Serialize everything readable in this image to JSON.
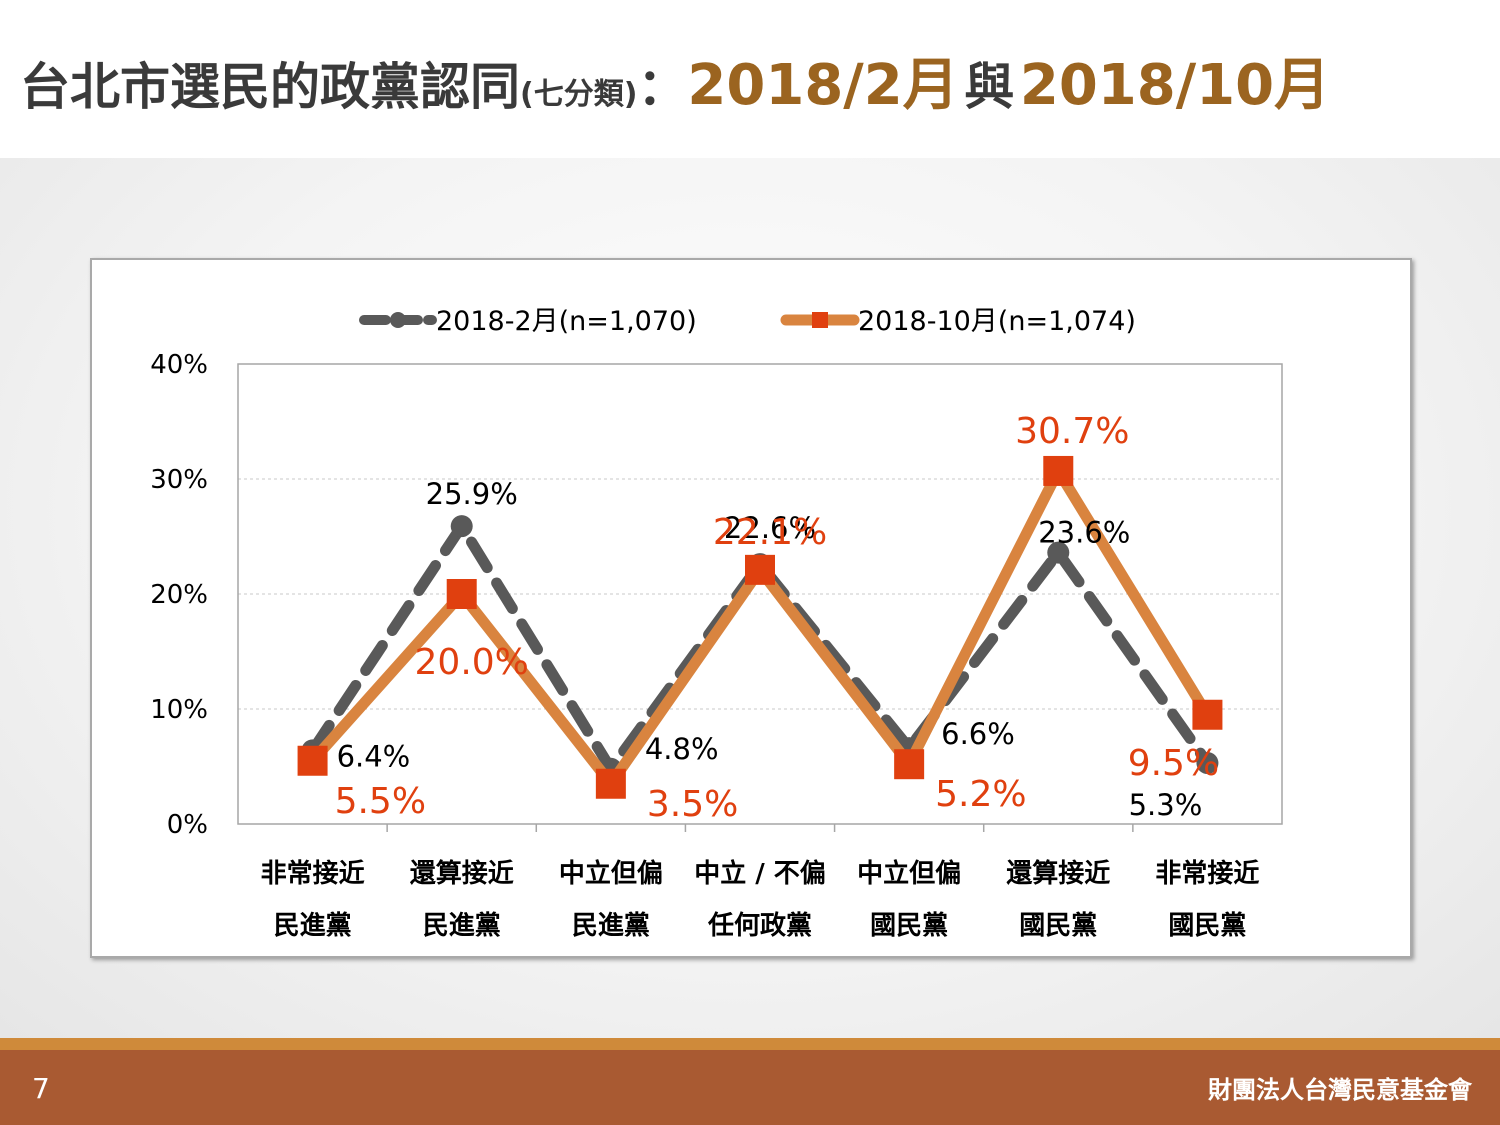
{
  "title": {
    "main": "台北市選民的政黨認同",
    "sub": "(七分類)",
    "colon": "：",
    "date1": "2018/2月",
    "and": "與",
    "date2": "2018/10月"
  },
  "footer": {
    "page_number": "7",
    "organization": "財團法人台灣民意基金會"
  },
  "colors": {
    "series_feb": "#595959",
    "series_oct": "#d9843f",
    "marker_oct": "#e0400f",
    "label_oct": "#e0400f",
    "label_feb": "#000000",
    "title_accent": "#9b6420",
    "footer_bg": "#a95a32"
  },
  "chart_data": {
    "type": "line",
    "categories": [
      [
        "非常接近",
        "民進黨"
      ],
      [
        "還算接近",
        "民進黨"
      ],
      [
        "中立但偏",
        "民進黨"
      ],
      [
        "中立 / 不偏",
        "任何政黨"
      ],
      [
        "中立但偏",
        "國民黨"
      ],
      [
        "還算接近",
        "國民黨"
      ],
      [
        "非常接近",
        "國民黨"
      ]
    ],
    "series": [
      {
        "name": "2018-2月(n=1,070)",
        "style": "dashed",
        "marker": "circle",
        "values": [
          6.4,
          25.9,
          4.8,
          22.6,
          6.6,
          23.6,
          5.3
        ],
        "labels": [
          "6.4%",
          "25.9%",
          "4.8%",
          "22.6%",
          "6.6%",
          "23.6%",
          "5.3%"
        ]
      },
      {
        "name": "2018-10月(n=1,074)",
        "style": "solid",
        "marker": "square",
        "values": [
          5.5,
          20.0,
          3.5,
          22.1,
          5.2,
          30.7,
          9.5
        ],
        "labels": [
          "5.5%",
          "20.0%",
          "3.5%",
          "22.1%",
          "5.2%",
          "30.7%",
          "9.5%"
        ]
      }
    ],
    "y_ticks": [
      "0%",
      "10%",
      "20%",
      "30%",
      "40%"
    ],
    "ylim": [
      0,
      40
    ],
    "y_unit": "%",
    "grid": true,
    "legend_position": "top"
  }
}
